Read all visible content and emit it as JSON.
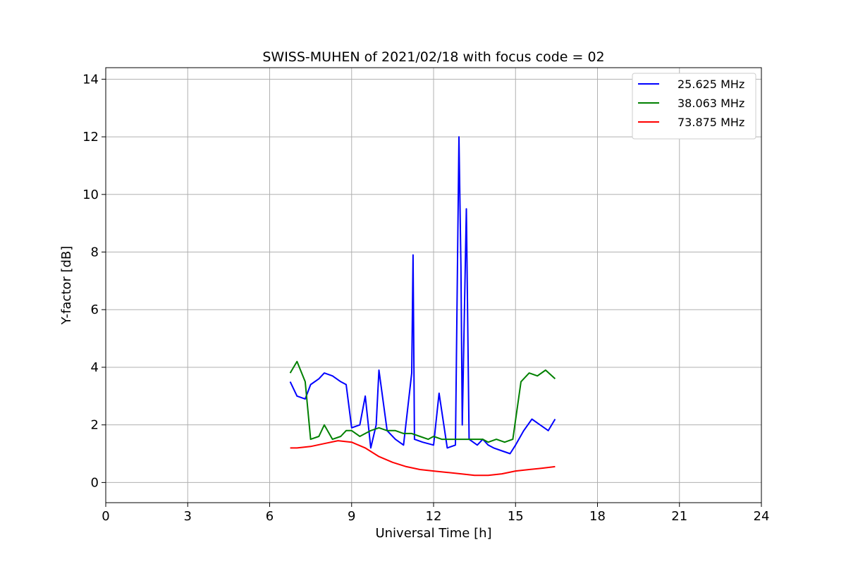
{
  "chart_data": {
    "type": "line",
    "title": "SWISS-MUHEN of 2021/02/18 with focus code = 02",
    "xlabel": "Universal Time [h]",
    "ylabel": "Y-factor [dB]",
    "xlim": [
      0,
      24
    ],
    "ylim": [
      -0.7,
      14.4
    ],
    "xticks": [
      0,
      3,
      6,
      9,
      12,
      15,
      18,
      21,
      24
    ],
    "yticks": [
      0,
      2,
      4,
      6,
      8,
      10,
      12,
      14
    ],
    "grid": true,
    "legend_position": "top-right",
    "series": [
      {
        "name": "25.625 MHz",
        "color": "#0000ff",
        "x": [
          6.75,
          7.0,
          7.3,
          7.5,
          7.8,
          8.0,
          8.3,
          8.6,
          8.8,
          9.0,
          9.3,
          9.5,
          9.7,
          9.9,
          10.0,
          10.3,
          10.6,
          10.9,
          11.2,
          11.25,
          11.3,
          11.6,
          12.0,
          12.2,
          12.5,
          12.8,
          12.93,
          13.0,
          13.05,
          13.2,
          13.3,
          13.6,
          13.8,
          14.0,
          14.2,
          14.5,
          14.8,
          15.0,
          15.3,
          15.6,
          15.9,
          16.2,
          16.45
        ],
        "y": [
          3.5,
          3.0,
          2.9,
          3.4,
          3.6,
          3.8,
          3.7,
          3.5,
          3.4,
          1.9,
          2.0,
          3.0,
          1.2,
          2.0,
          3.9,
          1.8,
          1.5,
          1.3,
          3.8,
          7.9,
          1.5,
          1.4,
          1.3,
          3.1,
          1.2,
          1.3,
          12.0,
          7.5,
          2.0,
          9.5,
          1.5,
          1.3,
          1.5,
          1.3,
          1.2,
          1.1,
          1.0,
          1.3,
          1.8,
          2.2,
          2.0,
          1.8,
          2.2
        ]
      },
      {
        "name": "38.063 MHz",
        "color": "#008000",
        "x": [
          6.75,
          7.0,
          7.3,
          7.5,
          7.8,
          8.0,
          8.3,
          8.6,
          8.8,
          9.0,
          9.3,
          9.5,
          9.7,
          10.0,
          10.3,
          10.6,
          10.9,
          11.2,
          11.5,
          11.8,
          12.0,
          12.3,
          12.6,
          12.9,
          13.2,
          13.5,
          13.8,
          14.0,
          14.3,
          14.6,
          14.9,
          15.2,
          15.5,
          15.8,
          16.1,
          16.45
        ],
        "y": [
          3.8,
          4.2,
          3.5,
          1.5,
          1.6,
          2.0,
          1.5,
          1.6,
          1.8,
          1.8,
          1.6,
          1.7,
          1.8,
          1.9,
          1.8,
          1.8,
          1.7,
          1.7,
          1.6,
          1.5,
          1.6,
          1.5,
          1.5,
          1.5,
          1.5,
          1.5,
          1.5,
          1.4,
          1.5,
          1.4,
          1.5,
          3.5,
          3.8,
          3.7,
          3.9,
          3.6
        ]
      },
      {
        "name": "73.875 MHz",
        "color": "#ff0000",
        "x": [
          6.75,
          7.0,
          7.5,
          8.0,
          8.5,
          9.0,
          9.5,
          10.0,
          10.5,
          11.0,
          11.5,
          12.0,
          12.5,
          13.0,
          13.5,
          14.0,
          14.5,
          15.0,
          15.5,
          16.0,
          16.45
        ],
        "y": [
          1.2,
          1.2,
          1.25,
          1.35,
          1.45,
          1.4,
          1.2,
          0.9,
          0.7,
          0.55,
          0.45,
          0.4,
          0.35,
          0.3,
          0.25,
          0.25,
          0.3,
          0.4,
          0.45,
          0.5,
          0.55
        ]
      }
    ]
  }
}
